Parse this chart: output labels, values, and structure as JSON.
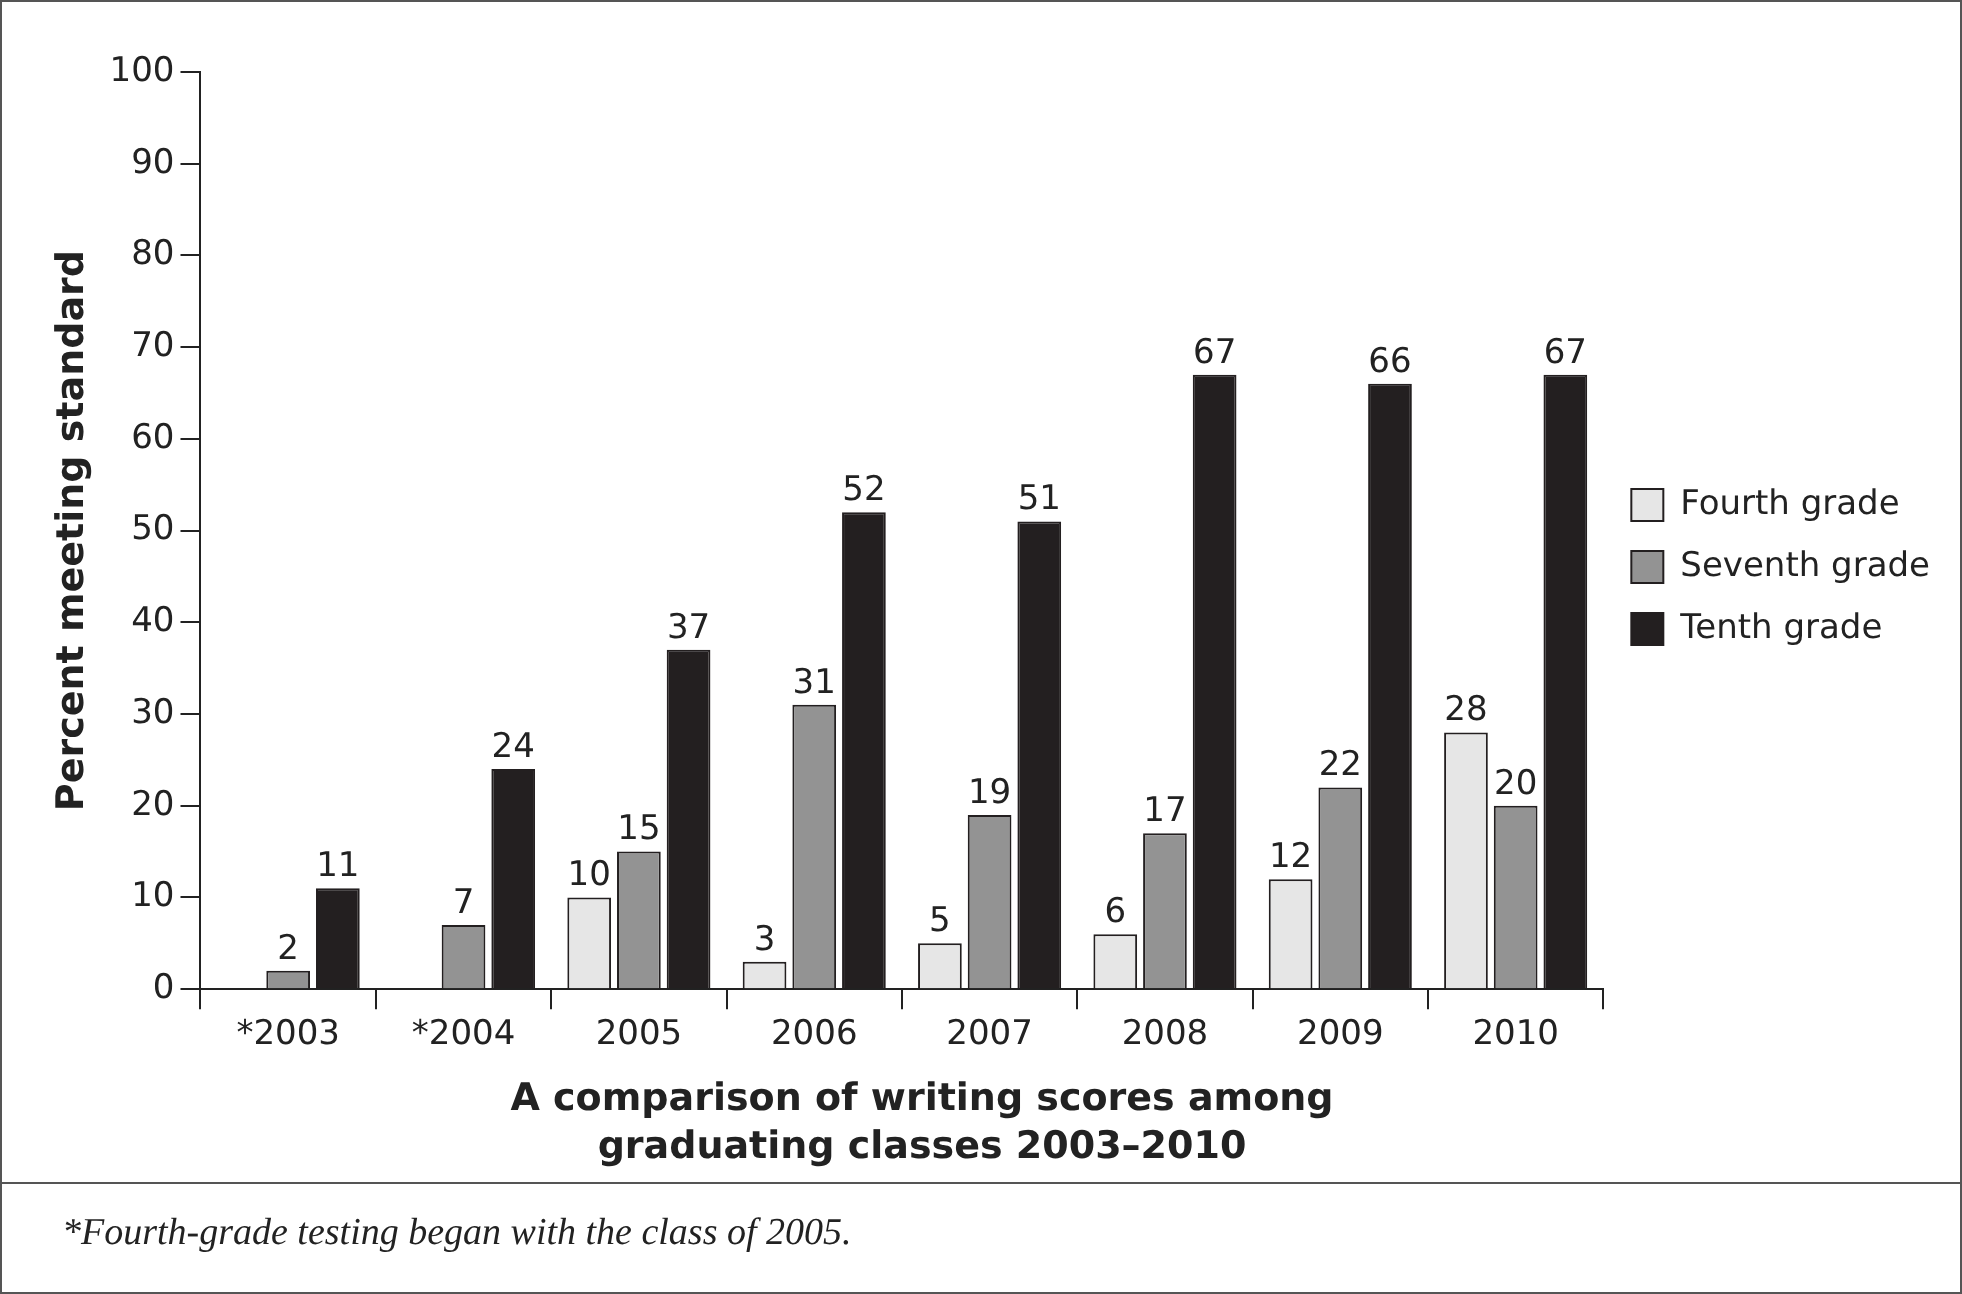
{
  "chart_data": {
    "type": "bar",
    "xlabel": "A comparison of writing scores among graduating classes 2003–2010",
    "ylabel": "Percent meeting standard",
    "categories": [
      "*2003",
      "*2004",
      "2005",
      "2006",
      "2007",
      "2008",
      "2009",
      "2010"
    ],
    "series": [
      {
        "name": "Fourth grade",
        "color": "#e6e6e6",
        "values": [
          null,
          null,
          10,
          3,
          5,
          6,
          12,
          28
        ]
      },
      {
        "name": "Seventh grade",
        "color": "#939393",
        "values": [
          2,
          7,
          15,
          31,
          19,
          17,
          22,
          20
        ]
      },
      {
        "name": "Tenth grade",
        "color": "#231f20",
        "values": [
          11,
          24,
          37,
          52,
          51,
          67,
          66,
          67
        ]
      }
    ],
    "ylim": [
      0,
      100
    ],
    "yticks": [
      0,
      10,
      20,
      30,
      40,
      50,
      60,
      70,
      80,
      90,
      100
    ],
    "grid": false,
    "legend": "right",
    "data_labels": true,
    "annotations": [
      "*Fourth-grade testing began with the class of 2005."
    ]
  }
}
